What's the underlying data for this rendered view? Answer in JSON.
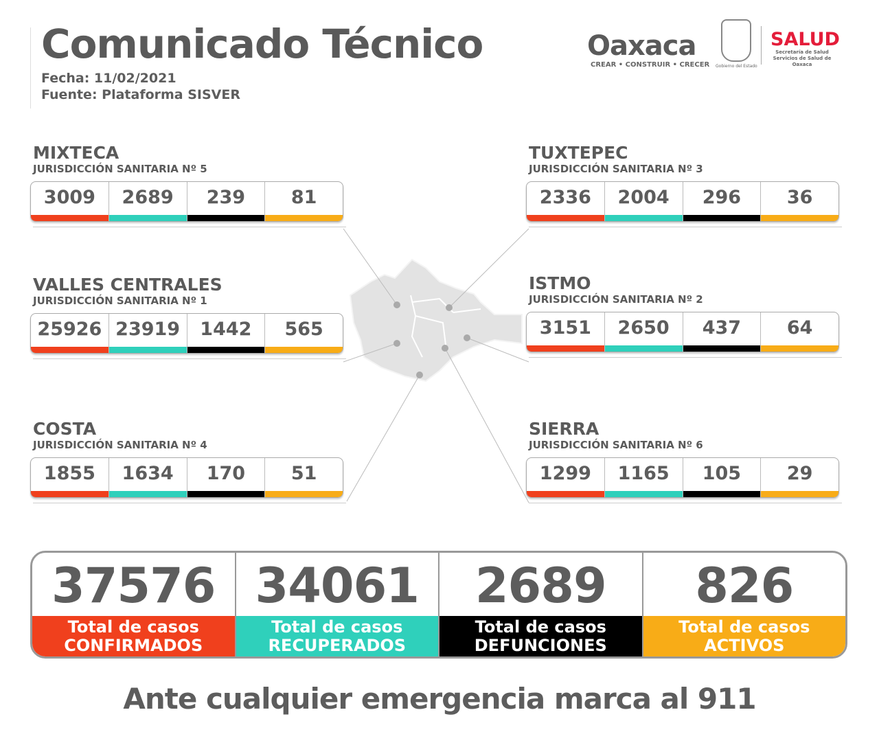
{
  "header": {
    "title": "Comunicado Técnico",
    "fecha": "Fecha: 11/02/2021",
    "fuente": "Fuente: Plataforma SISVER"
  },
  "logos": {
    "oaxaca": "Oaxaca",
    "oaxaca_tagline": "CREAR • CONSTRUIR • CRECER",
    "gobierno": "Gobierno del Estado",
    "salud": "SALUD",
    "salud_sub1": "Secretaría de Salud",
    "salud_sub2": "Servicios de Salud de Oaxaca"
  },
  "colors": {
    "confirmados": "#f0401d",
    "recuperados": "#2fd0bb",
    "defunciones": "#000000",
    "activos": "#f8ac17"
  },
  "regions": [
    {
      "name": "MIXTECA",
      "sub": "JURISDICCIÓN SANITARIA Nº 5",
      "values": [
        "3009",
        "2689",
        "239",
        "81"
      ]
    },
    {
      "name": "VALLES CENTRALES",
      "sub": "JURISDICCIÓN SANITARIA Nº 1",
      "values": [
        "25926",
        "23919",
        "1442",
        "565"
      ]
    },
    {
      "name": "COSTA",
      "sub": "JURISDICCIÓN SANITARIA Nº 4",
      "values": [
        "1855",
        "1634",
        "170",
        "51"
      ]
    },
    {
      "name": "TUXTEPEC",
      "sub": "JURISDICCIÓN SANITARIA Nº 3",
      "values": [
        "2336",
        "2004",
        "296",
        "36"
      ]
    },
    {
      "name": "ISTMO",
      "sub": "JURISDICCIÓN SANITARIA Nº 2",
      "values": [
        "3151",
        "2650",
        "437",
        "64"
      ]
    },
    {
      "name": "SIERRA",
      "sub": "JURISDICCIÓN SANITARIA Nº 6",
      "values": [
        "1299",
        "1165",
        "105",
        "29"
      ]
    }
  ],
  "totals": [
    {
      "value": "37576",
      "label1": "Total de casos",
      "label2": "CONFIRMADOS"
    },
    {
      "value": "34061",
      "label1": "Total de casos",
      "label2": "RECUPERADOS"
    },
    {
      "value": "2689",
      "label1": "Total de casos",
      "label2": "DEFUNCIONES"
    },
    {
      "value": "826",
      "label1": "Total de casos",
      "label2": "ACTIVOS"
    }
  ],
  "footer": "Ante cualquier emergencia marca al 911"
}
